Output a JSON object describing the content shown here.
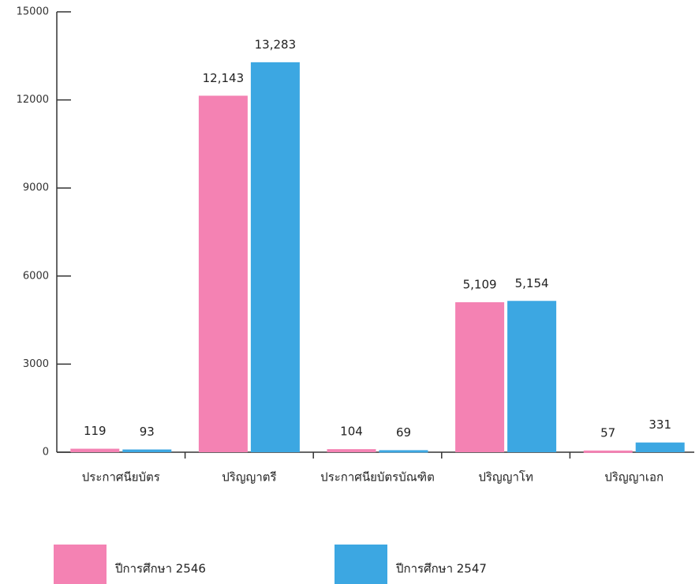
{
  "chart_data": {
    "type": "bar",
    "categories": [
      "ประกาศนียบัตร",
      "ปริญญาตรี",
      "ประกาศนียบัตรบัณฑิต",
      "ปริญญาโท",
      "ปริญญาเอก"
    ],
    "series": [
      {
        "name": "ปีการศึกษา 2546",
        "color": "#f482b3",
        "values": [
          119,
          12143,
          104,
          5109,
          57
        ],
        "value_labels": [
          "119",
          "12,143",
          "104",
          "5,109",
          "57"
        ]
      },
      {
        "name": "ปีการศึกษา 2547",
        "color": "#3ca7e2",
        "values": [
          93,
          13283,
          69,
          5154,
          331
        ],
        "value_labels": [
          "93",
          "13,283",
          "69",
          "5,154",
          "331"
        ]
      }
    ],
    "ylim": [
      0,
      15000
    ],
    "yticks": [
      0,
      3000,
      6000,
      9000,
      12000,
      15000
    ],
    "legend": "bottom"
  }
}
